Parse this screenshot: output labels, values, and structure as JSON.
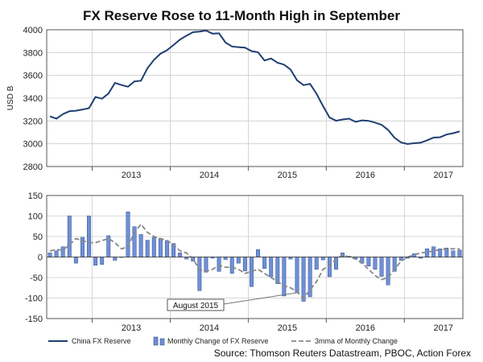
{
  "chart_data": [
    {
      "type": "line",
      "title": "FX Reserve Rose to 11-Month High in September",
      "ylabel": "USD B",
      "ylim": [
        2800,
        4000
      ],
      "yticks": [
        2800,
        3000,
        3200,
        3400,
        3600,
        3800,
        4000
      ],
      "year_labels": [
        "2013",
        "2014",
        "2015",
        "2016",
        "2017"
      ],
      "series": [
        {
          "name": "China FX Reserve",
          "color": "#1f3f73",
          "months": [
            "2012-06",
            "2012-07",
            "2012-08",
            "2012-09",
            "2012-10",
            "2012-11",
            "2012-12",
            "2013-01",
            "2013-02",
            "2013-03",
            "2013-04",
            "2013-05",
            "2013-06",
            "2013-07",
            "2013-08",
            "2013-09",
            "2013-10",
            "2013-11",
            "2013-12",
            "2014-01",
            "2014-02",
            "2014-03",
            "2014-04",
            "2014-05",
            "2014-06",
            "2014-07",
            "2014-08",
            "2014-09",
            "2014-10",
            "2014-11",
            "2014-12",
            "2015-01",
            "2015-02",
            "2015-03",
            "2015-04",
            "2015-05",
            "2015-06",
            "2015-07",
            "2015-08",
            "2015-09",
            "2015-10",
            "2015-11",
            "2015-12",
            "2016-01",
            "2016-02",
            "2016-03",
            "2016-04",
            "2016-05",
            "2016-06",
            "2016-07",
            "2016-08",
            "2016-09",
            "2016-10",
            "2016-11",
            "2016-12",
            "2017-01",
            "2017-02",
            "2017-03",
            "2017-04",
            "2017-05",
            "2017-06",
            "2017-07",
            "2017-08",
            "2017-09"
          ],
          "values": [
            3240,
            3220,
            3260,
            3285,
            3290,
            3300,
            3312,
            3410,
            3395,
            3440,
            3534,
            3515,
            3500,
            3547,
            3553,
            3663,
            3736,
            3790,
            3821,
            3866,
            3914,
            3948,
            3979,
            3984,
            3993,
            3966,
            3969,
            3888,
            3853,
            3847,
            3843,
            3813,
            3802,
            3730,
            3748,
            3711,
            3694,
            3651,
            3557,
            3514,
            3525,
            3438,
            3330,
            3230,
            3202,
            3213,
            3220,
            3192,
            3205,
            3201,
            3185,
            3166,
            3121,
            3052,
            3011,
            2998,
            3005,
            3009,
            3030,
            3054,
            3057,
            3081,
            3092,
            3108
          ]
        }
      ]
    },
    {
      "type": "bar",
      "ylim": [
        -150,
        150
      ],
      "yticks": [
        -150,
        -100,
        -50,
        0,
        50,
        100,
        150
      ],
      "year_labels": [
        "2013",
        "2014",
        "2015",
        "2016",
        "2017"
      ],
      "annotation": "August 2015",
      "series": [
        {
          "name": "Monthly Change of FX Reserve",
          "color": "#6f8fd6",
          "months": [
            "2012-06",
            "2012-07",
            "2012-08",
            "2012-09",
            "2012-10",
            "2012-11",
            "2012-12",
            "2013-01",
            "2013-02",
            "2013-03",
            "2013-04",
            "2013-05",
            "2013-06",
            "2013-07",
            "2013-08",
            "2013-09",
            "2013-10",
            "2013-11",
            "2013-12",
            "2014-01",
            "2014-02",
            "2014-03",
            "2014-04",
            "2014-05",
            "2014-06",
            "2014-07",
            "2014-08",
            "2014-09",
            "2014-10",
            "2014-11",
            "2014-12",
            "2015-01",
            "2015-02",
            "2015-03",
            "2015-04",
            "2015-05",
            "2015-06",
            "2015-07",
            "2015-08",
            "2015-09",
            "2015-10",
            "2015-11",
            "2015-12",
            "2016-01",
            "2016-02",
            "2016-03",
            "2016-04",
            "2016-05",
            "2016-06",
            "2016-07",
            "2016-08",
            "2016-09",
            "2016-10",
            "2016-11",
            "2016-12",
            "2017-01",
            "2017-02",
            "2017-03",
            "2017-04",
            "2017-05",
            "2017-06",
            "2017-07",
            "2017-08",
            "2017-09"
          ],
          "values": [
            10,
            15,
            25,
            100,
            -15,
            48,
            100,
            -20,
            -18,
            52,
            -8,
            0,
            110,
            74,
            55,
            41,
            48,
            45,
            40,
            33,
            10,
            -5,
            -10,
            -82,
            -37,
            -3,
            -35,
            -6,
            -40,
            -15,
            -34,
            -72,
            18,
            -28,
            -48,
            -65,
            -95,
            -5,
            -87,
            -108,
            -97,
            -30,
            -7,
            -48,
            -30,
            10,
            2,
            -5,
            -15,
            -22,
            -30,
            -47,
            -68,
            -35,
            -8,
            -3,
            8,
            -3,
            20,
            25,
            20,
            22,
            15,
            17
          ]
        },
        {
          "name": "3mma of Monthly Change",
          "color": "#888888",
          "values": [
            15,
            18,
            17,
            30,
            45,
            40,
            35,
            35,
            40,
            45,
            35,
            20,
            25,
            60,
            80,
            60,
            50,
            45,
            40,
            30,
            15,
            10,
            -5,
            -30,
            -35,
            -30,
            -20,
            -25,
            -25,
            -30,
            -40,
            -35,
            -30,
            -40,
            -50,
            -60,
            -70,
            -75,
            -85,
            -100,
            -80,
            -60,
            -30,
            -20,
            -5,
            5,
            0,
            -5,
            -15,
            -30,
            -45,
            -55,
            -50,
            -30,
            -10,
            0,
            5,
            10,
            12,
            15,
            18,
            20,
            20,
            20
          ]
        }
      ]
    }
  ],
  "source": "Source: Thomson Reuters Datastream, PBOC, Action Forex"
}
